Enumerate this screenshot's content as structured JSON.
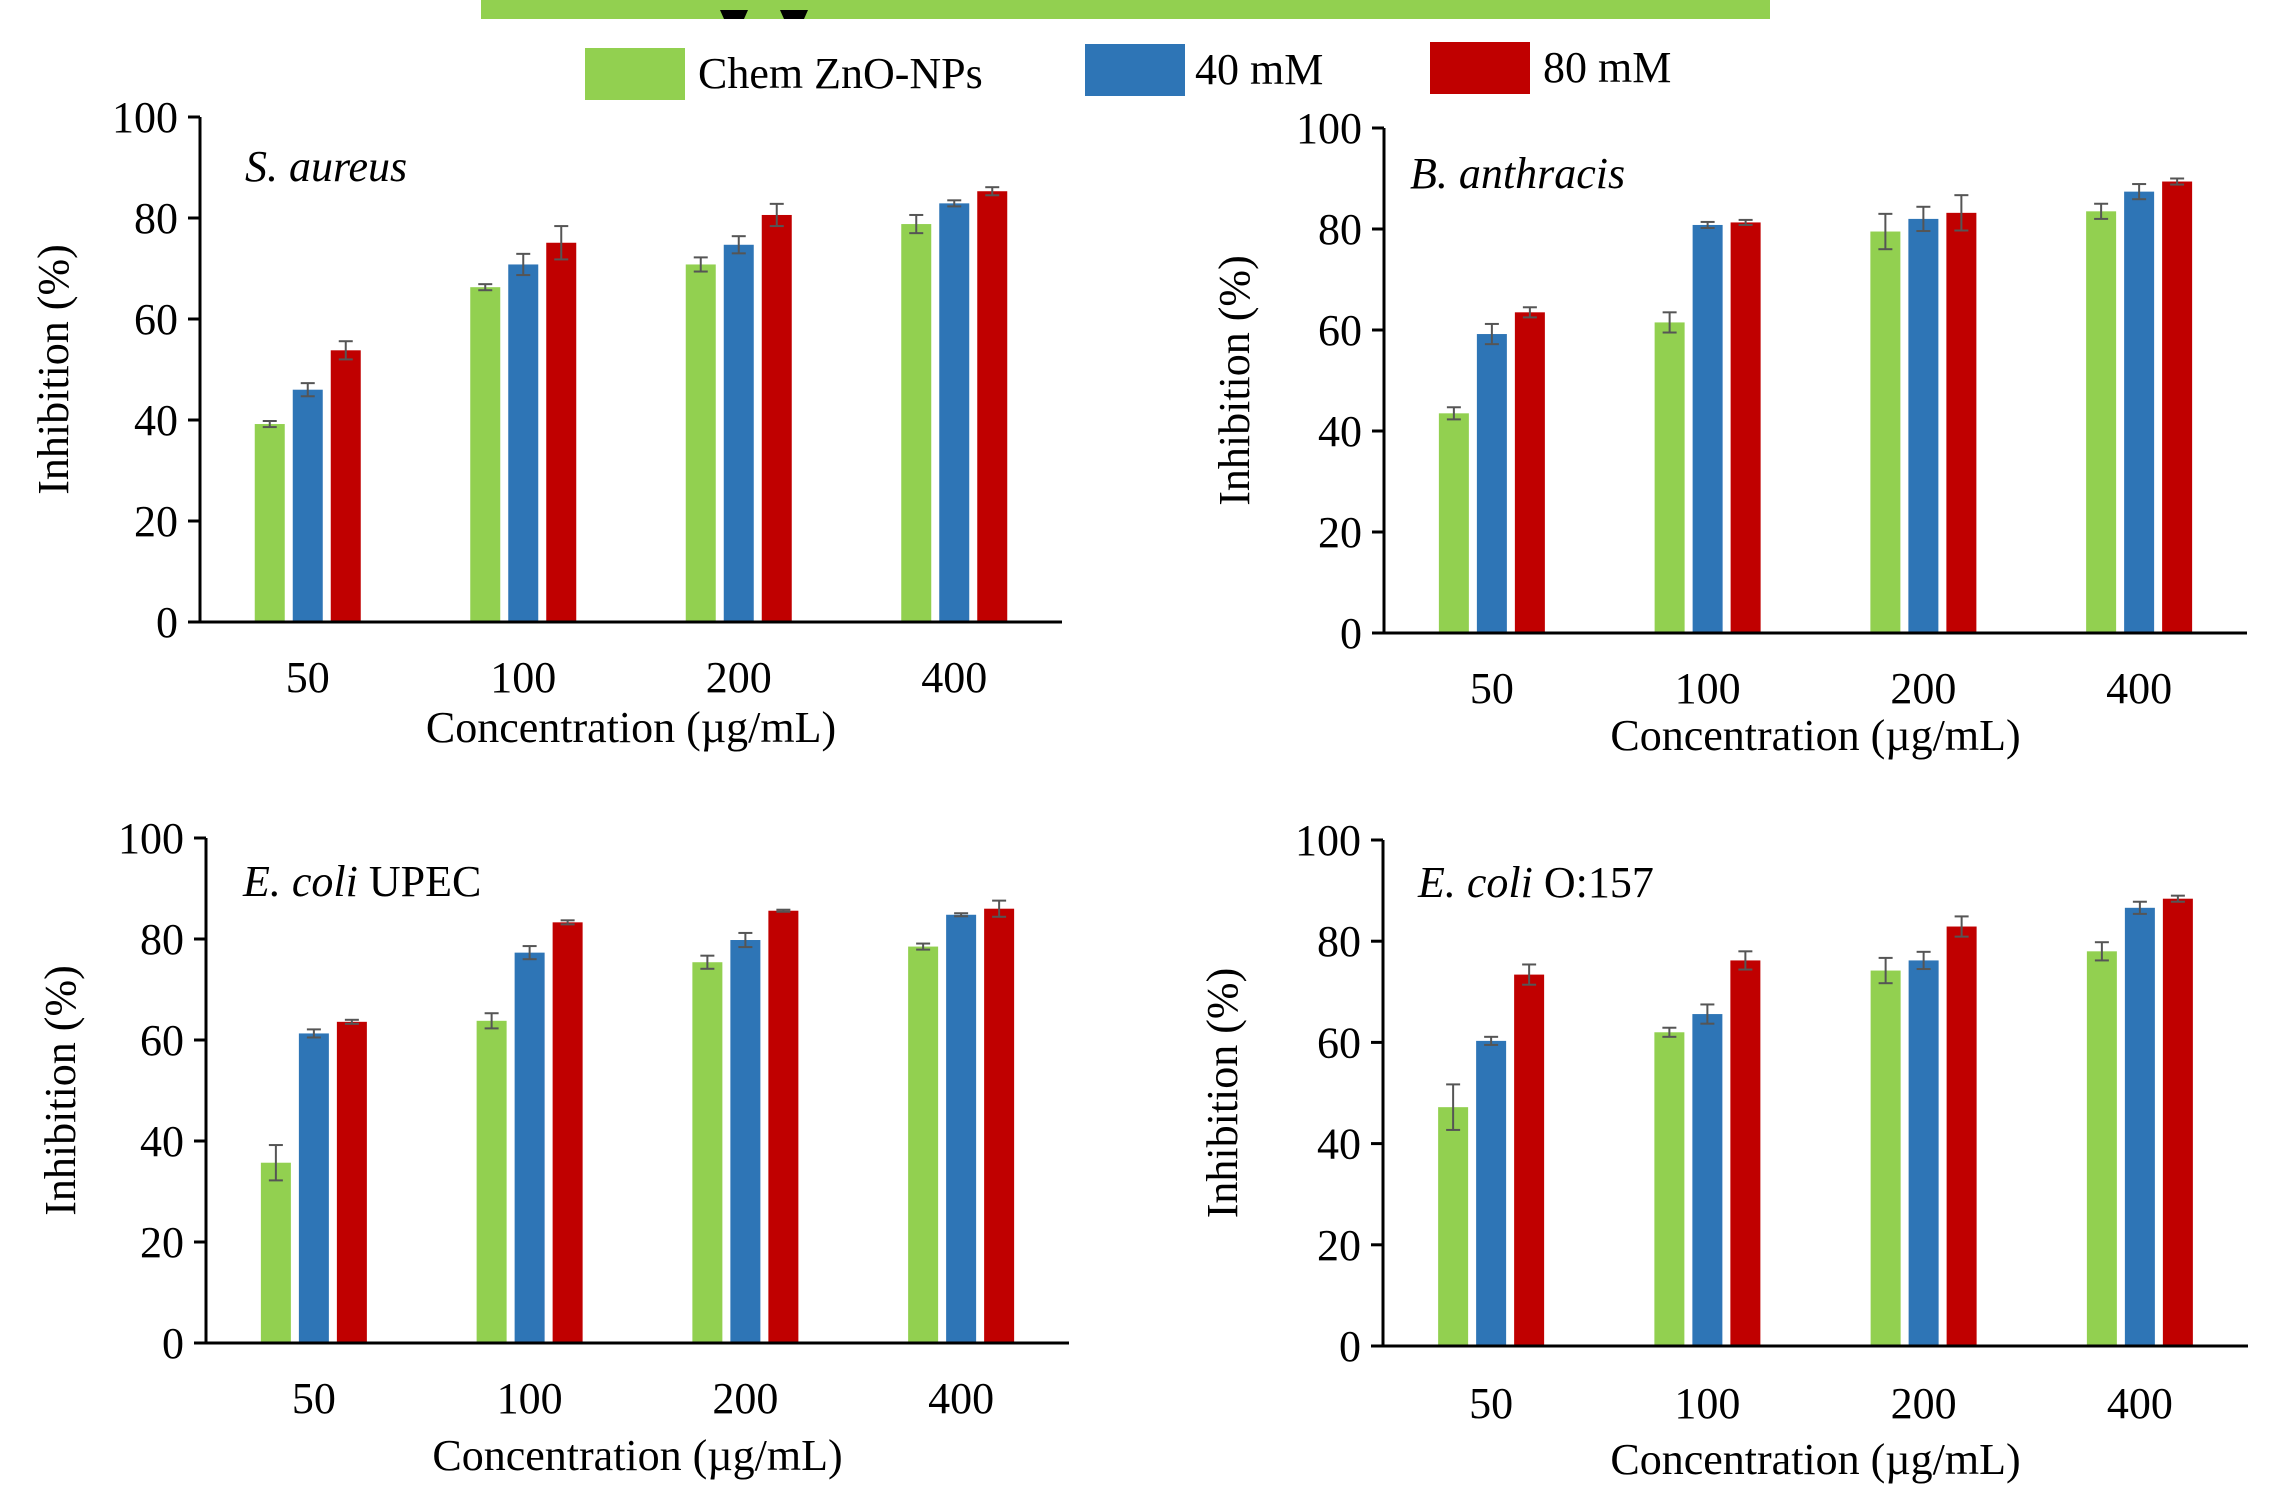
{
  "legend": {
    "items": [
      {
        "label": "Chem ZnO-NPs",
        "color": "#92d050"
      },
      {
        "label": "40 mM",
        "color": "#2e75b6"
      },
      {
        "label": "80 mM",
        "color": "#c00000"
      }
    ]
  },
  "chart_data": [
    {
      "type": "bar",
      "panel": "top-left",
      "organism_italic": "S. aureus",
      "organism_suffix": "",
      "categories": [
        "50",
        "100",
        "200",
        "400"
      ],
      "xlabel": "Concentration (µg/mL)",
      "ylabel": "Inhibition (%)",
      "ylim": [
        0,
        100
      ],
      "yticks": [
        "0",
        "20",
        "40",
        "60",
        "80",
        "100"
      ],
      "grid": false,
      "series": [
        {
          "name": "Chem ZnO-NPs",
          "values": [
            39.2,
            66.3,
            70.8,
            78.8
          ],
          "errors": [
            0.6,
            0.6,
            1.4,
            1.8
          ]
        },
        {
          "name": "40 mM",
          "values": [
            46.0,
            70.8,
            74.7,
            82.9
          ],
          "errors": [
            1.3,
            2.1,
            1.7,
            0.6
          ]
        },
        {
          "name": "80 mM",
          "values": [
            53.8,
            75.1,
            80.6,
            85.3
          ],
          "errors": [
            1.8,
            3.3,
            2.2,
            0.8
          ]
        }
      ]
    },
    {
      "type": "bar",
      "panel": "top-right",
      "organism_italic": "B. anthracis",
      "organism_suffix": "",
      "categories": [
        "50",
        "100",
        "200",
        "400"
      ],
      "xlabel": "Concentration (µg/mL)",
      "ylabel": "Inhibition (%)",
      "ylim": [
        0,
        100
      ],
      "yticks": [
        "0",
        "20",
        "40",
        "60",
        "80",
        "100"
      ],
      "grid": false,
      "series": [
        {
          "name": "Chem ZnO-NPs",
          "values": [
            43.5,
            61.5,
            79.5,
            83.5
          ],
          "errors": [
            1.2,
            2.0,
            3.5,
            1.5
          ]
        },
        {
          "name": "40 mM",
          "values": [
            59.2,
            80.8,
            82.0,
            87.4
          ],
          "errors": [
            2.0,
            0.6,
            2.4,
            1.5
          ]
        },
        {
          "name": "80 mM",
          "values": [
            63.5,
            81.3,
            83.2,
            89.4
          ],
          "errors": [
            1.0,
            0.5,
            3.5,
            0.6
          ]
        }
      ]
    },
    {
      "type": "bar",
      "panel": "bottom-left",
      "organism_italic": "E. coli",
      "organism_suffix": "UPEC",
      "categories": [
        "50",
        "100",
        "200",
        "400"
      ],
      "xlabel": "Concentration (µg/mL)",
      "ylabel": "Inhibition (%)",
      "ylim": [
        0,
        100
      ],
      "yticks": [
        "0",
        "20",
        "40",
        "60",
        "80",
        "100"
      ],
      "grid": false,
      "series": [
        {
          "name": "Chem ZnO-NPs",
          "values": [
            35.7,
            63.8,
            75.4,
            78.5
          ],
          "errors": [
            3.5,
            1.5,
            1.3,
            0.6
          ]
        },
        {
          "name": "40 mM",
          "values": [
            61.3,
            77.3,
            79.8,
            84.8
          ],
          "errors": [
            0.8,
            1.3,
            1.4,
            0.3
          ]
        },
        {
          "name": "80 mM",
          "values": [
            63.6,
            83.3,
            85.6,
            86.0
          ],
          "errors": [
            0.4,
            0.4,
            0.2,
            1.6
          ]
        }
      ]
    },
    {
      "type": "bar",
      "panel": "bottom-right",
      "organism_italic": "E. coli",
      "organism_suffix": "O:157",
      "categories": [
        "50",
        "100",
        "200",
        "400"
      ],
      "xlabel": "Concentration (µg/mL)",
      "ylabel": "Inhibition (%)",
      "ylim": [
        0,
        100
      ],
      "yticks": [
        "0",
        "20",
        "40",
        "60",
        "80",
        "100"
      ],
      "grid": false,
      "series": [
        {
          "name": "Chem ZnO-NPs",
          "values": [
            47.2,
            62.0,
            74.2,
            78.0
          ],
          "errors": [
            4.5,
            0.9,
            2.5,
            1.8
          ]
        },
        {
          "name": "40 mM",
          "values": [
            60.3,
            65.6,
            76.2,
            86.6
          ],
          "errors": [
            0.8,
            1.9,
            1.7,
            1.2
          ]
        },
        {
          "name": "80 mM",
          "values": [
            73.4,
            76.2,
            82.9,
            88.4
          ],
          "errors": [
            2.0,
            1.8,
            2.0,
            0.6
          ]
        }
      ]
    }
  ]
}
